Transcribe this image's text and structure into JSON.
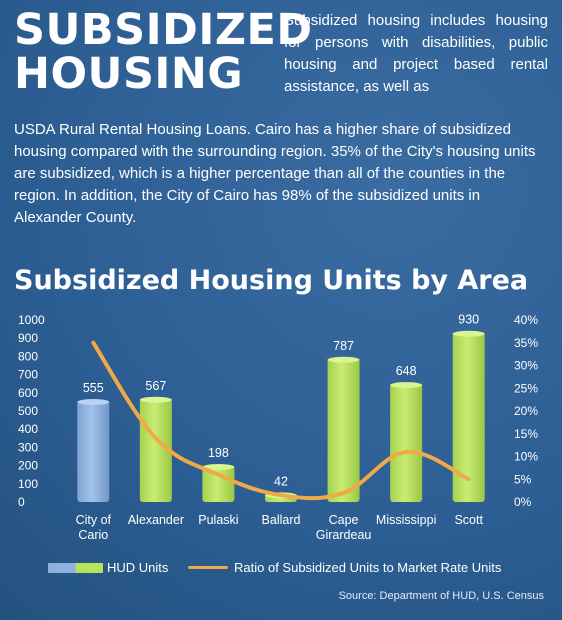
{
  "header": {
    "title_line1": "SUBSIDIZED",
    "title_line2": "HOUSING"
  },
  "intro": {
    "right_text": "Subsidized housing includes housing for persons with disabilities, public housing and project based rental assistance, as well as",
    "continuation_text": "USDA Rural Rental Housing Loans.  Cairo has a higher share of subsidized housing compared with the surrounding region. 35% of the City's housing units are subsidized, which is a higher percentage than all of the counties in the region. In addition, the City of Cairo has 98% of the subsidized units in Alexander County."
  },
  "chart_data": {
    "type": "bar",
    "title": "Subsidized Housing Units by Area",
    "categories": [
      "City of Cario",
      "Alexander",
      "Pulaski",
      "Ballard",
      "Cape Girardeau",
      "Mississippi",
      "Scott"
    ],
    "x_tick_lines": [
      [
        "City of",
        "Cario"
      ],
      [
        "Alexander"
      ],
      [
        "Pulaski"
      ],
      [
        "Ballard"
      ],
      [
        "Cape",
        "Girardeau"
      ],
      [
        "Mississippi"
      ],
      [
        "Scott"
      ]
    ],
    "series": [
      {
        "name": "HUD Units",
        "type": "bar",
        "axis": "left",
        "values": [
          555,
          567,
          198,
          42,
          787,
          648,
          930
        ],
        "data_labels": [
          "555",
          "567",
          "198",
          "42",
          "787",
          "648",
          "930"
        ],
        "colors": [
          "#8eb1e0",
          "#b7e25c",
          "#b7e25c",
          "#b7e25c",
          "#b7e25c",
          "#b7e25c",
          "#b7e25c"
        ]
      },
      {
        "name": "Ratio of Subsidized Units to Market Rate Units",
        "type": "line",
        "axis": "right",
        "values": [
          0.35,
          0.14,
          0.06,
          0.015,
          0.02,
          0.11,
          0.05
        ],
        "color": "#f0a947"
      }
    ],
    "y_left": {
      "min": 0,
      "max": 1000,
      "ticks": [
        "0",
        "100",
        "200",
        "300",
        "400",
        "500",
        "600",
        "700",
        "800",
        "900",
        "1000"
      ]
    },
    "y_right": {
      "min": 0,
      "max": 0.4,
      "ticks": [
        "0%",
        "5%",
        "10%",
        "15%",
        "20%",
        "25%",
        "30%",
        "35%",
        "40%"
      ]
    },
    "grid": false,
    "legend_position": "bottom"
  },
  "legend": {
    "bar_label": "HUD Units",
    "line_label": "Ratio of Subsidized Units to Market Rate Units"
  },
  "source": "Source: Department of HUD, U.S. Census",
  "colors": {
    "background": "#2c5d92",
    "bar_highlight": "#8eb1e0",
    "bar_default": "#b7e25c",
    "line": "#f0a947",
    "text": "#ffffff"
  }
}
